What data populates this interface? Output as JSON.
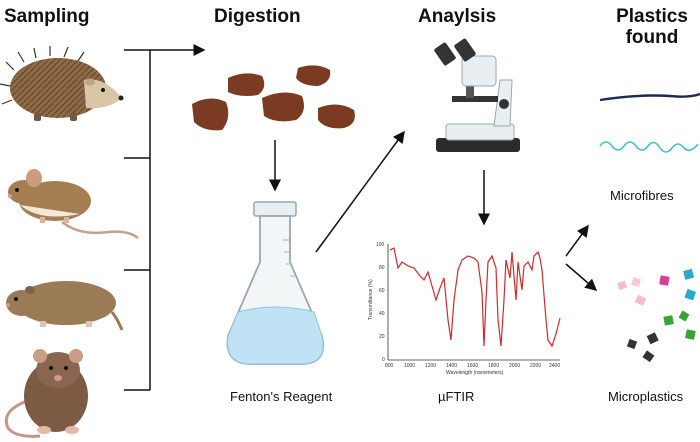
{
  "headers": {
    "sampling": "Sampling",
    "digestion": "Digestion",
    "analysis": "Anaylsis",
    "plastics_line1": "Plastics",
    "plastics_line2": "found"
  },
  "labels": {
    "reagent": "Fenton's Reagent",
    "method": "µFTIR",
    "microfibres": "Microfibres",
    "microplastics": "Microplastics"
  },
  "spectrum": {
    "y_axis_label": "Transmittance (%)",
    "x_axis_label": "Wavelength (nanometers)",
    "y_ticks": [
      "100",
      "80",
      "60",
      "40",
      "20",
      "0"
    ],
    "x_ticks": [
      "800",
      "1000",
      "1200",
      "1400",
      "1600",
      "1800",
      "2000",
      "2200",
      "2400"
    ],
    "line_color": "#d42a2a"
  },
  "animals": [
    "hedgehog-icon",
    "mouse-icon",
    "vole-icon",
    "rat-icon"
  ],
  "colors": {
    "fibre_dark": "#1b2a55",
    "fibre_cyan": "#3fc1cf",
    "liquid": "#bfe3f4",
    "sample": "#7a3b22"
  }
}
